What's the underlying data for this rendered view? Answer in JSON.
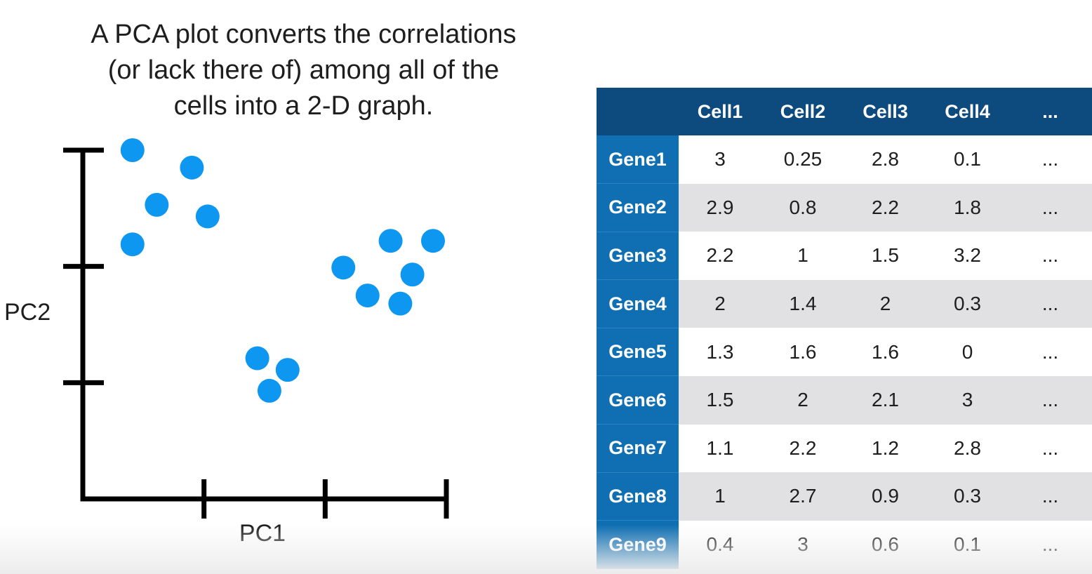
{
  "caption": {
    "lines": [
      "A PCA plot converts the correlations",
      "(or lack there of) among all of the",
      "cells into a 2-D graph."
    ]
  },
  "chart_data": [
    {
      "type": "scatter",
      "title": "",
      "xlabel": "PC1",
      "ylabel": "PC2",
      "xlim": [
        0,
        3
      ],
      "ylim": [
        0,
        3
      ],
      "x_ticks": 3,
      "y_ticks": 3,
      "grid": false,
      "point_color": "#0e97f0",
      "axis_color": "#000000",
      "points": [
        {
          "x": 0.41,
          "y": 3.0
        },
        {
          "x": 0.9,
          "y": 2.85
        },
        {
          "x": 0.61,
          "y": 2.53
        },
        {
          "x": 1.03,
          "y": 2.43
        },
        {
          "x": 0.41,
          "y": 2.19
        },
        {
          "x": 2.15,
          "y": 1.99
        },
        {
          "x": 2.54,
          "y": 2.22
        },
        {
          "x": 2.72,
          "y": 1.93
        },
        {
          "x": 2.35,
          "y": 1.75
        },
        {
          "x": 2.89,
          "y": 2.22
        },
        {
          "x": 2.62,
          "y": 1.68
        },
        {
          "x": 1.44,
          "y": 1.21
        },
        {
          "x": 1.69,
          "y": 1.11
        },
        {
          "x": 1.54,
          "y": 0.93
        }
      ]
    },
    {
      "type": "table",
      "header_color": "#0d4a7e",
      "row_header_color": "#0f6fb2",
      "stripe_color": "#e1e1e3",
      "columns": [
        "",
        "Cell1",
        "Cell2",
        "Cell3",
        "Cell4",
        "..."
      ],
      "rows": [
        {
          "label": "Gene1",
          "values": [
            "3",
            "0.25",
            "2.8",
            "0.1",
            "..."
          ]
        },
        {
          "label": "Gene2",
          "values": [
            "2.9",
            "0.8",
            "2.2",
            "1.8",
            "..."
          ]
        },
        {
          "label": "Gene3",
          "values": [
            "2.2",
            "1",
            "1.5",
            "3.2",
            "..."
          ]
        },
        {
          "label": "Gene4",
          "values": [
            "2",
            "1.4",
            "2",
            "0.3",
            "..."
          ]
        },
        {
          "label": "Gene5",
          "values": [
            "1.3",
            "1.6",
            "1.6",
            "0",
            "..."
          ]
        },
        {
          "label": "Gene6",
          "values": [
            "1.5",
            "2",
            "2.1",
            "3",
            "..."
          ]
        },
        {
          "label": "Gene7",
          "values": [
            "1.1",
            "2.2",
            "1.2",
            "2.8",
            "..."
          ]
        },
        {
          "label": "Gene8",
          "values": [
            "1",
            "2.7",
            "0.9",
            "0.3",
            "..."
          ]
        },
        {
          "label": "Gene9",
          "values": [
            "0.4",
            "3",
            "0.6",
            "0.1",
            "..."
          ]
        }
      ]
    }
  ]
}
